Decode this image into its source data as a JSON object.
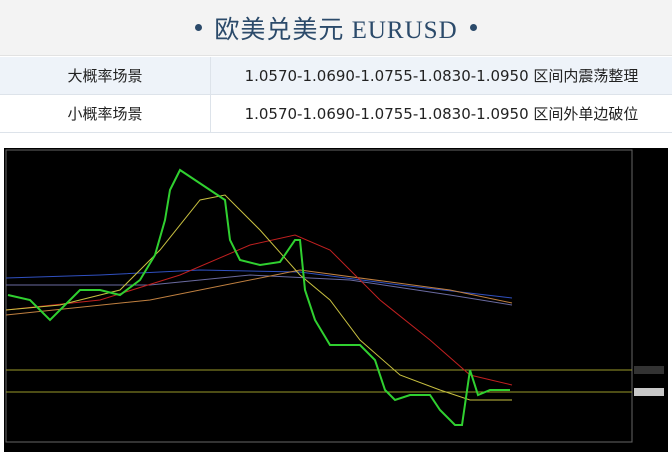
{
  "header": {
    "title": "欧美兑美元 EURUSD"
  },
  "table": {
    "rows": [
      [
        "大概率场景",
        "1.0570-1.0690-1.0755-1.0830-1.0950 区间内震荡整理"
      ],
      [
        "小概率场景",
        "1.0570-1.0690-1.0755-1.0830-1.0950 区间外单边破位"
      ]
    ]
  }
}
